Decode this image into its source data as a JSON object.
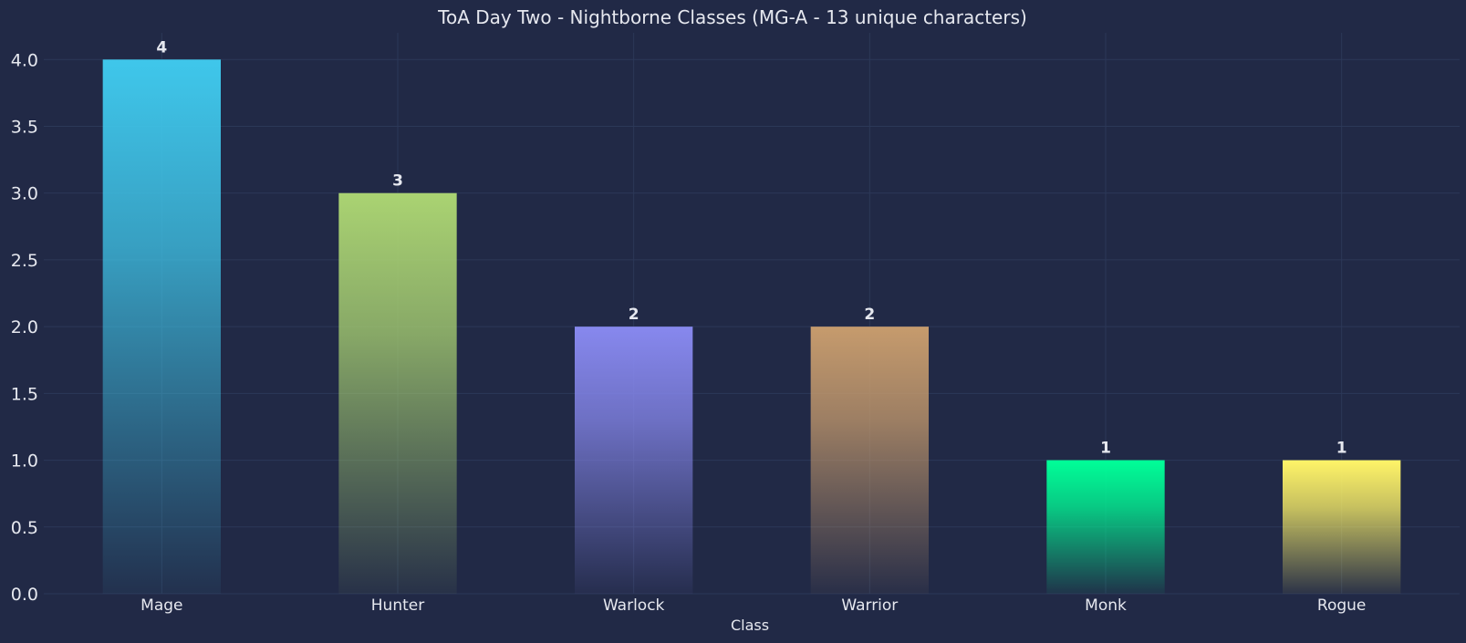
{
  "chart_data": {
    "type": "bar",
    "title": "ToA Day Two - Nightborne Classes (MG-A - 13 unique characters)",
    "xlabel": "Class",
    "ylabel": "",
    "categories": [
      "Mage",
      "Hunter",
      "Warlock",
      "Warrior",
      "Monk",
      "Rogue"
    ],
    "values": [
      4,
      3,
      2,
      2,
      1,
      1
    ],
    "colors": [
      "#3fc7eb",
      "#aad372",
      "#8788ee",
      "#c69b6d",
      "#00ff98",
      "#fff468"
    ],
    "ylim": [
      0,
      4.2
    ],
    "yticks": [
      0.0,
      0.5,
      1.0,
      1.5,
      2.0,
      2.5,
      3.0,
      3.5,
      4.0
    ],
    "grid": true,
    "legend": "none"
  },
  "theme": {
    "background": "#212946",
    "grid": "#2c3858",
    "text": "#e6e8ef"
  }
}
